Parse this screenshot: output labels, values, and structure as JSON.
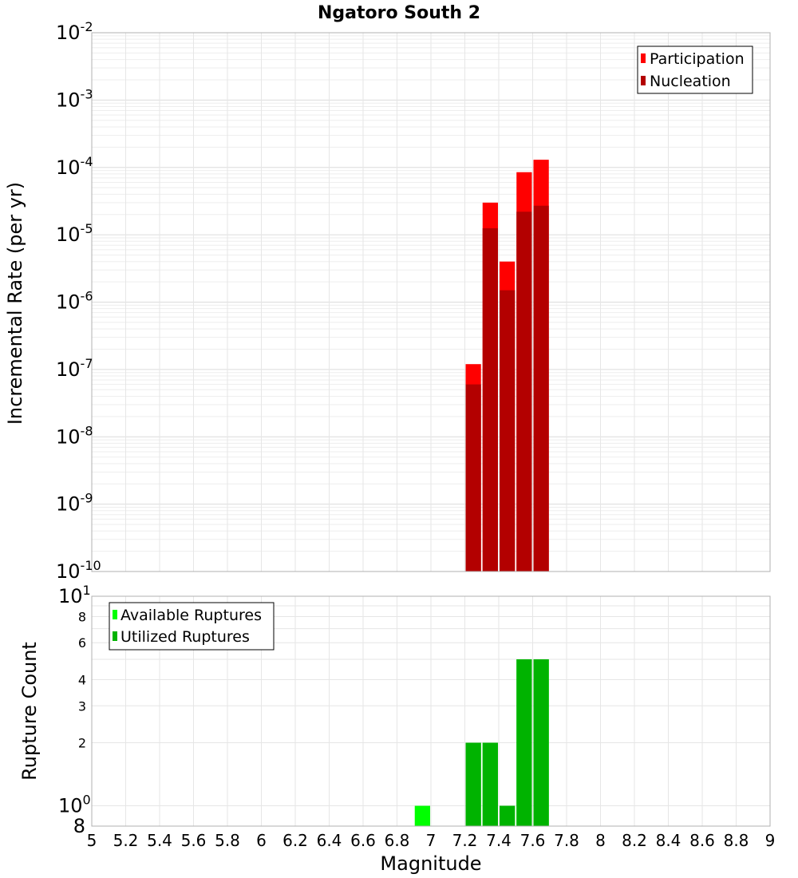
{
  "chart_data": [
    {
      "type": "bar",
      "title": "Ngatoro South 2",
      "ylabel": "Incremental Rate (per yr)",
      "xlabel": "Magnitude",
      "yscale": "log",
      "ylim": [
        1e-10,
        0.01
      ],
      "xlim": [
        5,
        9
      ],
      "bin_width": 0.1,
      "y_ticks": [
        {
          "mantissa": "10",
          "exponent": "-2"
        },
        {
          "mantissa": "10",
          "exponent": "-3"
        },
        {
          "mantissa": "10",
          "exponent": "-4"
        },
        {
          "mantissa": "10",
          "exponent": "-5"
        },
        {
          "mantissa": "10",
          "exponent": "-6"
        },
        {
          "mantissa": "10",
          "exponent": "-7"
        },
        {
          "mantissa": "10",
          "exponent": "-8"
        },
        {
          "mantissa": "10",
          "exponent": "-9"
        },
        {
          "mantissa": "10",
          "exponent": "-10"
        }
      ],
      "legend": {
        "location": "top-right"
      },
      "series": [
        {
          "name": "Participation",
          "color": "#ff0000",
          "x": [
            7.25,
            7.35,
            7.45,
            7.55,
            7.65
          ],
          "values": [
            1.2e-07,
            3e-05,
            4e-06,
            8.5e-05,
            0.00013
          ]
        },
        {
          "name": "Nucleation",
          "color": "#b30000",
          "x": [
            7.25,
            7.35,
            7.45,
            7.55,
            7.65
          ],
          "values": [
            6e-08,
            1.25e-05,
            1.5e-06,
            2.2e-05,
            2.7e-05
          ]
        }
      ]
    },
    {
      "type": "bar",
      "ylabel": "Rupture Count",
      "xlabel": "Magnitude",
      "yscale": "log",
      "ylim": [
        0.8,
        10
      ],
      "xlim": [
        5,
        9
      ],
      "bin_width": 0.1,
      "x_ticks": [
        "5",
        "5.2",
        "5.4",
        "5.6",
        "5.8",
        "6",
        "6.2",
        "6.4",
        "6.6",
        "6.8",
        "7",
        "7.2",
        "7.4",
        "7.6",
        "7.8",
        "8",
        "8.2",
        "8.4",
        "8.6",
        "8.8",
        "9"
      ],
      "y_major_ticks": [
        {
          "value": 10,
          "mantissa": "10",
          "exponent": "1"
        },
        {
          "value": 1,
          "mantissa": "10",
          "exponent": "0"
        }
      ],
      "y_minor_labels": [
        "8",
        "6",
        "4",
        "3",
        "2"
      ],
      "y_bottom_label": "8",
      "legend": {
        "location": "top-left"
      },
      "series": [
        {
          "name": "Available Ruptures",
          "color": "#00ff00",
          "x": [
            6.95,
            7.25,
            7.35,
            7.45,
            7.55,
            7.65
          ],
          "values": [
            1,
            2,
            2,
            1,
            5,
            5
          ]
        },
        {
          "name": "Utilized Ruptures",
          "color": "#00b300",
          "x": [
            7.25,
            7.35,
            7.45,
            7.55,
            7.65
          ],
          "values": [
            2,
            2,
            1,
            5,
            5
          ]
        }
      ]
    }
  ]
}
